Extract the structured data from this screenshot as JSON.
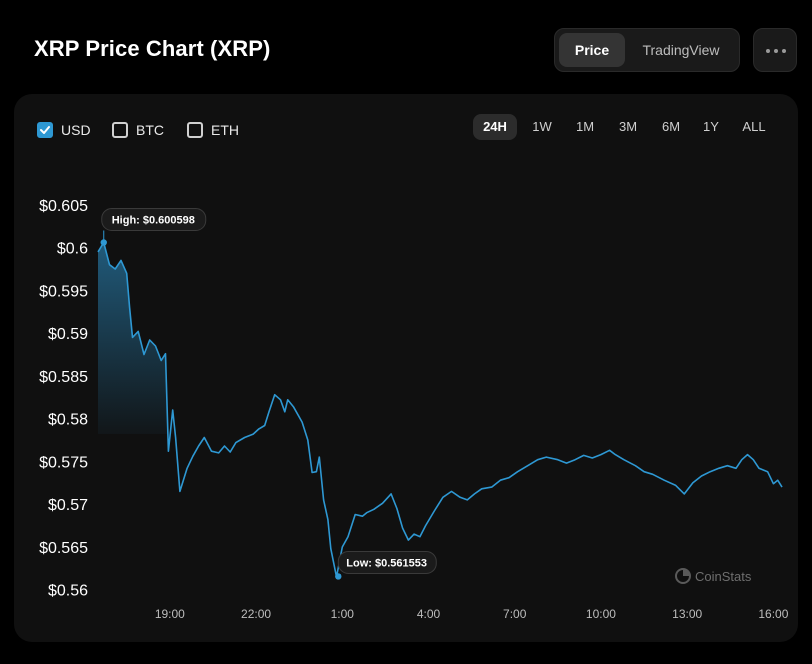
{
  "header": {
    "title": "XRP Price Chart (XRP)"
  },
  "view_toggle": {
    "options": [
      "Price",
      "TradingView"
    ],
    "selected": "Price"
  },
  "currencies": [
    {
      "label": "USD",
      "checked": true
    },
    {
      "label": "BTC",
      "checked": false
    },
    {
      "label": "ETH",
      "checked": false
    }
  ],
  "ranges": [
    "24H",
    "1W",
    "1M",
    "3M",
    "6M",
    "1Y",
    "ALL"
  ],
  "selected_range": "24H",
  "watermark": "CoinStats",
  "colors": {
    "line": "#2e98d3",
    "accent": "#2e98d3",
    "background": "#000000",
    "card": "#101010"
  },
  "chart_data": {
    "type": "area",
    "title": "XRP Price Chart (XRP)",
    "xlabel": "",
    "ylabel": "",
    "xlim_hours": [
      16.5,
      16.3
    ],
    "ylim": [
      0.5595,
      0.6065
    ],
    "y_ticks": [
      "$0.56",
      "$0.565",
      "$0.57",
      "$0.575",
      "$0.58",
      "$0.585",
      "$0.59",
      "$0.595",
      "$0.6",
      "$0.605"
    ],
    "y_tick_values": [
      0.56,
      0.565,
      0.57,
      0.575,
      0.58,
      0.585,
      0.59,
      0.595,
      0.6,
      0.605
    ],
    "x_ticks": [
      "19:00",
      "22:00",
      "1:00",
      "4:00",
      "7:00",
      "10:00",
      "13:00",
      "16:00"
    ],
    "x_tick_hours": [
      19,
      22,
      25,
      28,
      31,
      34,
      37,
      40
    ],
    "high": {
      "label": "High: $0.600598",
      "value": 0.600598,
      "time_hours": 16.7
    },
    "low": {
      "label": "Low: $0.561553",
      "value": 0.561553,
      "time_hours": 0.5
    },
    "series": [
      {
        "values": [
          [
            16.5,
            0.5995
          ],
          [
            16.7,
            0.6006
          ],
          [
            16.9,
            0.598
          ],
          [
            17.1,
            0.5975
          ],
          [
            17.3,
            0.5985
          ],
          [
            17.5,
            0.597
          ],
          [
            17.6,
            0.593
          ],
          [
            17.7,
            0.5895
          ],
          [
            17.9,
            0.5902
          ],
          [
            18.1,
            0.5875
          ],
          [
            18.3,
            0.5892
          ],
          [
            18.5,
            0.5885
          ],
          [
            18.7,
            0.5868
          ],
          [
            18.85,
            0.5876
          ],
          [
            18.95,
            0.5762
          ],
          [
            19.1,
            0.581
          ],
          [
            19.2,
            0.5778
          ],
          [
            19.35,
            0.5715
          ],
          [
            19.6,
            0.5742
          ],
          [
            19.8,
            0.5756
          ],
          [
            20.0,
            0.5768
          ],
          [
            20.2,
            0.5778
          ],
          [
            20.45,
            0.5762
          ],
          [
            20.7,
            0.576
          ],
          [
            20.9,
            0.5768
          ],
          [
            21.1,
            0.5761
          ],
          [
            21.3,
            0.5772
          ],
          [
            21.6,
            0.5778
          ],
          [
            21.9,
            0.5782
          ],
          [
            22.1,
            0.5788
          ],
          [
            22.3,
            0.5792
          ],
          [
            22.45,
            0.5808
          ],
          [
            22.65,
            0.5828
          ],
          [
            22.85,
            0.5822
          ],
          [
            23.0,
            0.5808
          ],
          [
            23.1,
            0.5822
          ],
          [
            23.3,
            0.5814
          ],
          [
            23.6,
            0.5796
          ],
          [
            23.8,
            0.5775
          ],
          [
            23.95,
            0.5737
          ],
          [
            24.1,
            0.5738
          ],
          [
            24.2,
            0.5755
          ],
          [
            24.35,
            0.5705
          ],
          [
            24.5,
            0.5682
          ],
          [
            24.6,
            0.5648
          ],
          [
            24.8,
            0.5615
          ],
          [
            25.0,
            0.565
          ],
          [
            25.2,
            0.5662
          ],
          [
            25.45,
            0.5688
          ],
          [
            25.7,
            0.5686
          ],
          [
            25.85,
            0.569
          ],
          [
            26.1,
            0.5694
          ],
          [
            26.4,
            0.5701
          ],
          [
            26.7,
            0.5712
          ],
          [
            26.9,
            0.5695
          ],
          [
            27.1,
            0.5672
          ],
          [
            27.3,
            0.5658
          ],
          [
            27.5,
            0.5665
          ],
          [
            27.7,
            0.5662
          ],
          [
            27.9,
            0.5675
          ],
          [
            28.2,
            0.5692
          ],
          [
            28.5,
            0.5708
          ],
          [
            28.8,
            0.5715
          ],
          [
            29.1,
            0.5708
          ],
          [
            29.35,
            0.5705
          ],
          [
            29.6,
            0.5712
          ],
          [
            29.85,
            0.5718
          ],
          [
            30.2,
            0.572
          ],
          [
            30.5,
            0.5728
          ],
          [
            30.8,
            0.5731
          ],
          [
            31.1,
            0.5738
          ],
          [
            31.45,
            0.5745
          ],
          [
            31.8,
            0.5752
          ],
          [
            32.1,
            0.5755
          ],
          [
            32.5,
            0.5752
          ],
          [
            32.8,
            0.5748
          ],
          [
            33.1,
            0.5752
          ],
          [
            33.4,
            0.5757
          ],
          [
            33.7,
            0.5754
          ],
          [
            34.0,
            0.5758
          ],
          [
            34.3,
            0.5763
          ],
          [
            34.5,
            0.5758
          ],
          [
            34.8,
            0.5752
          ],
          [
            35.2,
            0.5745
          ],
          [
            35.5,
            0.5738
          ],
          [
            35.8,
            0.5735
          ],
          [
            36.2,
            0.5728
          ],
          [
            36.6,
            0.5722
          ],
          [
            36.9,
            0.5712
          ],
          [
            37.2,
            0.5725
          ],
          [
            37.5,
            0.5733
          ],
          [
            37.8,
            0.5738
          ],
          [
            38.1,
            0.5742
          ],
          [
            38.4,
            0.5745
          ],
          [
            38.7,
            0.5742
          ],
          [
            38.9,
            0.5752
          ],
          [
            39.1,
            0.5758
          ],
          [
            39.3,
            0.5752
          ],
          [
            39.5,
            0.5742
          ],
          [
            39.8,
            0.5738
          ],
          [
            40.0,
            0.5724
          ],
          [
            40.15,
            0.5728
          ],
          [
            40.3,
            0.572
          ]
        ]
      }
    ],
    "grid": false,
    "legend": "none"
  }
}
